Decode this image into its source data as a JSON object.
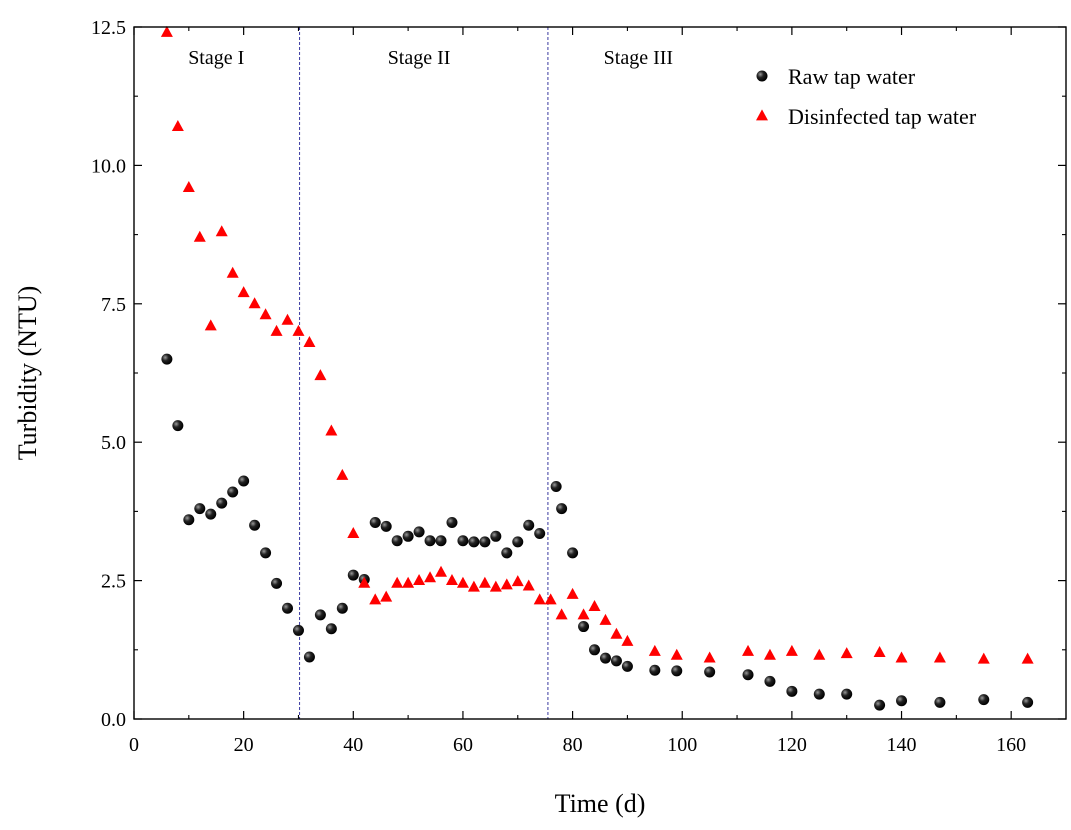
{
  "chart_data": {
    "type": "scatter",
    "xlabel": "Time (d)",
    "ylabel": "Turbidity (NTU)",
    "xlim": [
      0,
      170
    ],
    "ylim": [
      0,
      12.5
    ],
    "xticks": [
      "0",
      "20",
      "40",
      "60",
      "80",
      "100",
      "120",
      "140",
      "160"
    ],
    "yticks": [
      "0.0",
      "2.5",
      "5.0",
      "7.5",
      "10.0",
      "12.5"
    ],
    "grid": false,
    "legend_position": "top-right",
    "stage_boundaries": [
      30.2,
      75.5
    ],
    "stages": [
      {
        "label": "Stage I",
        "x": 15
      },
      {
        "label": "Stage II",
        "x": 52
      },
      {
        "label": "Stage III",
        "x": 92
      }
    ],
    "series": [
      {
        "name": "Raw tap water",
        "marker": "circle",
        "color": "#000000",
        "points": [
          [
            6,
            6.5
          ],
          [
            8,
            5.3
          ],
          [
            10,
            3.6
          ],
          [
            12,
            3.8
          ],
          [
            14,
            3.7
          ],
          [
            16,
            3.9
          ],
          [
            18,
            4.1
          ],
          [
            20,
            4.3
          ],
          [
            22,
            3.5
          ],
          [
            24,
            3.0
          ],
          [
            26,
            2.45
          ],
          [
            28,
            2.0
          ],
          [
            30,
            1.6
          ],
          [
            32,
            1.12
          ],
          [
            34,
            1.88
          ],
          [
            36,
            1.63
          ],
          [
            38,
            2.0
          ],
          [
            40,
            2.6
          ],
          [
            42,
            2.52
          ],
          [
            44,
            3.55
          ],
          [
            46,
            3.48
          ],
          [
            48,
            3.22
          ],
          [
            50,
            3.3
          ],
          [
            52,
            3.38
          ],
          [
            54,
            3.22
          ],
          [
            56,
            3.22
          ],
          [
            58,
            3.55
          ],
          [
            60,
            3.22
          ],
          [
            62,
            3.2
          ],
          [
            64,
            3.2
          ],
          [
            66,
            3.3
          ],
          [
            68,
            3.0
          ],
          [
            70,
            3.2
          ],
          [
            72,
            3.5
          ],
          [
            74,
            3.35
          ],
          [
            77,
            4.2
          ],
          [
            78,
            3.8
          ],
          [
            80,
            3.0
          ],
          [
            82,
            1.67
          ],
          [
            84,
            1.25
          ],
          [
            86,
            1.1
          ],
          [
            88,
            1.05
          ],
          [
            90,
            0.95
          ],
          [
            95,
            0.88
          ],
          [
            99,
            0.87
          ],
          [
            105,
            0.85
          ],
          [
            112,
            0.8
          ],
          [
            116,
            0.68
          ],
          [
            120,
            0.5
          ],
          [
            125,
            0.45
          ],
          [
            130,
            0.45
          ],
          [
            136,
            0.25
          ],
          [
            140,
            0.33
          ],
          [
            147,
            0.3
          ],
          [
            155,
            0.35
          ],
          [
            163,
            0.3
          ]
        ]
      },
      {
        "name": "Disinfected tap water",
        "marker": "triangle",
        "color": "#ff0000",
        "points": [
          [
            6,
            12.4
          ],
          [
            8,
            10.7
          ],
          [
            10,
            9.6
          ],
          [
            12,
            8.7
          ],
          [
            14,
            7.1
          ],
          [
            16,
            8.8
          ],
          [
            18,
            8.05
          ],
          [
            20,
            7.7
          ],
          [
            22,
            7.5
          ],
          [
            24,
            7.3
          ],
          [
            26,
            7.0
          ],
          [
            28,
            7.2
          ],
          [
            30,
            7.0
          ],
          [
            32,
            6.8
          ],
          [
            34,
            6.2
          ],
          [
            36,
            5.2
          ],
          [
            38,
            4.4
          ],
          [
            40,
            3.35
          ],
          [
            42,
            2.45
          ],
          [
            44,
            2.15
          ],
          [
            46,
            2.2
          ],
          [
            48,
            2.45
          ],
          [
            50,
            2.45
          ],
          [
            52,
            2.5
          ],
          [
            54,
            2.55
          ],
          [
            56,
            2.65
          ],
          [
            58,
            2.5
          ],
          [
            60,
            2.45
          ],
          [
            62,
            2.38
          ],
          [
            64,
            2.45
          ],
          [
            66,
            2.38
          ],
          [
            68,
            2.42
          ],
          [
            70,
            2.48
          ],
          [
            72,
            2.4
          ],
          [
            74,
            2.15
          ],
          [
            76,
            2.15
          ],
          [
            78,
            1.88
          ],
          [
            80,
            2.25
          ],
          [
            82,
            1.88
          ],
          [
            84,
            2.03
          ],
          [
            86,
            1.78
          ],
          [
            88,
            1.53
          ],
          [
            90,
            1.4
          ],
          [
            95,
            1.22
          ],
          [
            99,
            1.15
          ],
          [
            105,
            1.1
          ],
          [
            112,
            1.22
          ],
          [
            116,
            1.15
          ],
          [
            120,
            1.22
          ],
          [
            125,
            1.15
          ],
          [
            130,
            1.18
          ],
          [
            136,
            1.2
          ],
          [
            140,
            1.1
          ],
          [
            147,
            1.1
          ],
          [
            155,
            1.08
          ],
          [
            163,
            1.08
          ]
        ]
      }
    ]
  }
}
